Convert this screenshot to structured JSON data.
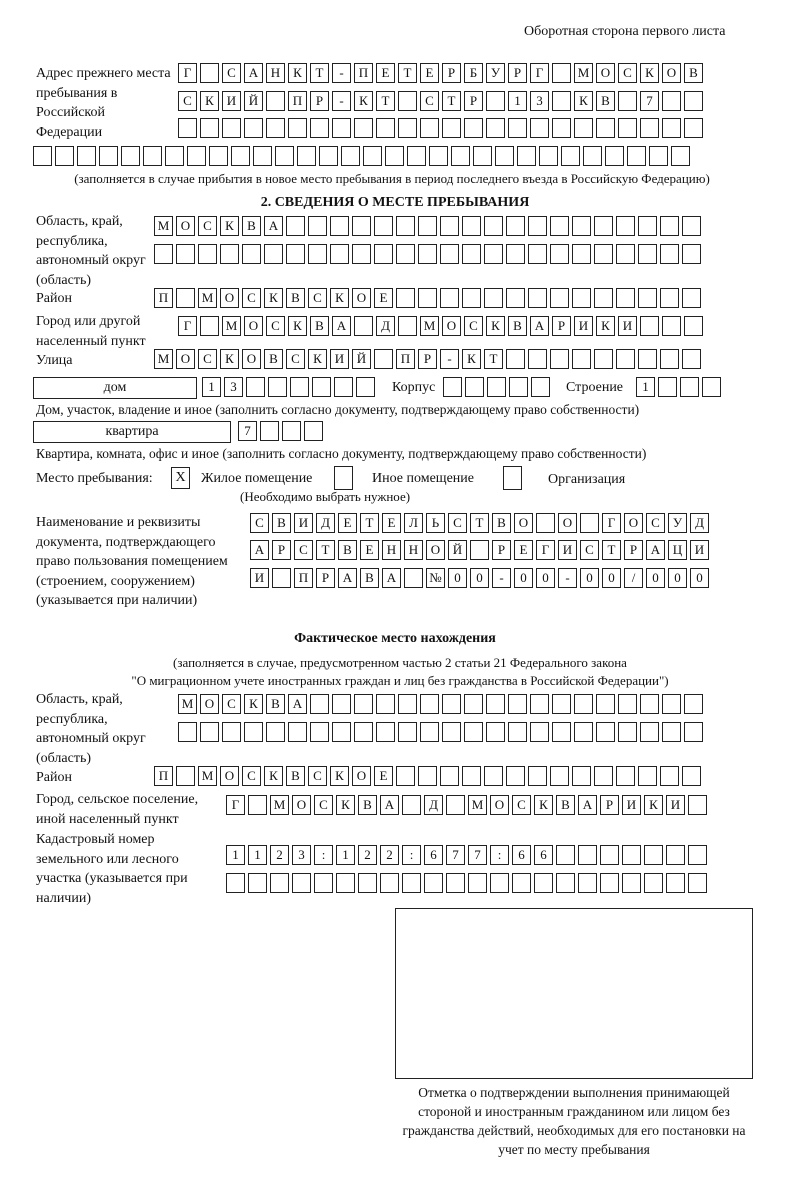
{
  "header": {
    "page_side": "Оборотная сторона первого листа"
  },
  "previous_address": {
    "label": "Адрес прежнего места пребывания в Российской Федерации",
    "rows": [
      [
        "Г",
        "",
        "С",
        "А",
        "Н",
        "К",
        "Т",
        "-",
        "П",
        "Е",
        "Т",
        "Е",
        "Р",
        "Б",
        "У",
        "Р",
        "Г",
        "",
        "М",
        "О",
        "С",
        "К",
        "О",
        "В"
      ],
      [
        "С",
        "К",
        "И",
        "Й",
        "",
        "П",
        "Р",
        "-",
        "К",
        "Т",
        "",
        "С",
        "Т",
        "Р",
        "",
        "1",
        "3",
        "",
        "К",
        "В",
        "",
        "7",
        "",
        ""
      ],
      [
        "",
        "",
        "",
        "",
        "",
        "",
        "",
        "",
        "",
        "",
        "",
        "",
        "",
        "",
        "",
        "",
        "",
        "",
        "",
        "",
        "",
        "",
        "",
        ""
      ],
      [
        "",
        "",
        "",
        "",
        "",
        "",
        "",
        "",
        "",
        "",
        "",
        "",
        "",
        "",
        "",
        "",
        "",
        "",
        "",
        "",
        "",
        "",
        "",
        "",
        "",
        "",
        "",
        "",
        "",
        ""
      ]
    ],
    "note": "(заполняется в случае прибытия в новое место пребывания в период последнего въезда в Российскую Федерацию)"
  },
  "section2": {
    "title": "2. СВЕДЕНИЯ О МЕСТЕ ПРЕБЫВАНИЯ",
    "region_label": "Область, край, республика, автономный округ (область)",
    "region_rows": [
      [
        "М",
        "О",
        "С",
        "К",
        "В",
        "А",
        "",
        "",
        "",
        "",
        "",
        "",
        "",
        "",
        "",
        "",
        "",
        "",
        "",
        "",
        "",
        "",
        "",
        "",
        ""
      ],
      [
        "",
        "",
        "",
        "",
        "",
        "",
        "",
        "",
        "",
        "",
        "",
        "",
        "",
        "",
        "",
        "",
        "",
        "",
        "",
        "",
        "",
        "",
        "",
        "",
        ""
      ]
    ],
    "district_label": "Район",
    "district": [
      "П",
      "",
      "М",
      "О",
      "С",
      "К",
      "В",
      "С",
      "К",
      "О",
      "Е",
      "",
      "",
      "",
      "",
      "",
      "",
      "",
      "",
      "",
      "",
      "",
      "",
      "",
      ""
    ],
    "city_label": "Город или другой населенный пункт",
    "city": [
      "Г",
      "",
      "М",
      "О",
      "С",
      "К",
      "В",
      "А",
      "",
      "Д",
      "",
      "М",
      "О",
      "С",
      "К",
      "В",
      "А",
      "Р",
      "И",
      "К",
      "И",
      "",
      "",
      ""
    ],
    "street_label": "Улица",
    "street": [
      "М",
      "О",
      "С",
      "К",
      "О",
      "В",
      "С",
      "К",
      "И",
      "Й",
      "",
      "П",
      "Р",
      "-",
      "К",
      "Т",
      "",
      "",
      "",
      "",
      "",
      "",
      "",
      "",
      ""
    ],
    "house_type": "дом",
    "house": [
      "1",
      "3",
      "",
      "",
      "",
      "",
      "",
      ""
    ],
    "korpus_label": "Корпус",
    "korpus": [
      "",
      "",
      "",
      "",
      ""
    ],
    "building_label": "Строение",
    "building": [
      "1",
      "",
      "",
      ""
    ],
    "house_note": "Дом, участок, владение и иное (заполнить согласно документу, подтверждающему право собственности)",
    "flat_type": "квартира",
    "flat": [
      "7",
      "",
      "",
      ""
    ],
    "flat_note": "Квартира, комната, офис и иное (заполнить согласно документу, подтверждающему право собственности)",
    "stay_place_label": "Место пребывания:",
    "options": [
      {
        "label": "Жилое помещение",
        "mark": "X"
      },
      {
        "label": "Иное помещение",
        "mark": ""
      },
      {
        "label": "Организация",
        "mark": ""
      }
    ],
    "options_note": "(Необходимо выбрать нужное)",
    "doc_label": "Наименование и реквизиты документа, подтверждающего право пользования помещением (строением, сооружением) (указывается при наличии)",
    "doc_rows": [
      [
        "С",
        "В",
        "И",
        "Д",
        "Е",
        "Т",
        "Е",
        "Л",
        "Ь",
        "С",
        "Т",
        "В",
        "О",
        "",
        "О",
        "",
        "Г",
        "О",
        "С",
        "У",
        "Д"
      ],
      [
        "А",
        "Р",
        "С",
        "Т",
        "В",
        "Е",
        "Н",
        "Н",
        "О",
        "Й",
        "",
        "Р",
        "Е",
        "Г",
        "И",
        "С",
        "Т",
        "Р",
        "А",
        "Ц",
        "И"
      ],
      [
        "И",
        "",
        "П",
        "Р",
        "А",
        "В",
        "А",
        "",
        "№",
        "0",
        "0",
        "-",
        "0",
        "0",
        "-",
        "0",
        "0",
        "/",
        "0",
        "0",
        "0"
      ]
    ]
  },
  "actual": {
    "title": "Фактическое место нахождения",
    "note1": "(заполняется в случае, предусмотренном частью 2 статьи 21 Федерального закона",
    "note2": "\"О миграционном учете иностранных граждан и лиц без гражданства в Российской Федерации\")",
    "region_label": "Область, край, республика, автономный округ (область)",
    "region_rows": [
      [
        "М",
        "О",
        "С",
        "К",
        "В",
        "А",
        "",
        "",
        "",
        "",
        "",
        "",
        "",
        "",
        "",
        "",
        "",
        "",
        "",
        "",
        "",
        "",
        "",
        ""
      ],
      [
        "",
        "",
        "",
        "",
        "",
        "",
        "",
        "",
        "",
        "",
        "",
        "",
        "",
        "",
        "",
        "",
        "",
        "",
        "",
        "",
        "",
        "",
        "",
        ""
      ]
    ],
    "district_label": "Район",
    "district": [
      "П",
      "",
      "М",
      "О",
      "С",
      "К",
      "В",
      "С",
      "К",
      "О",
      "Е",
      "",
      "",
      "",
      "",
      "",
      "",
      "",
      "",
      "",
      "",
      "",
      "",
      "",
      ""
    ],
    "city_label": "Город, сельское поселение, иной населенный пункт",
    "city": [
      "Г",
      "",
      "М",
      "О",
      "С",
      "К",
      "В",
      "А",
      "",
      "Д",
      "",
      "М",
      "О",
      "С",
      "К",
      "В",
      "А",
      "Р",
      "И",
      "К",
      "И",
      ""
    ],
    "cadastral_label": "Кадастровый номер земельного или лесного участка (указывается при наличии)",
    "cadastral_rows": [
      [
        "1",
        "1",
        "2",
        "3",
        ":",
        "1",
        "2",
        "2",
        ":",
        "6",
        "7",
        "7",
        ":",
        "6",
        "6",
        "",
        "",
        "",
        "",
        "",
        "",
        ""
      ],
      [
        "",
        "",
        "",
        "",
        "",
        "",
        "",
        "",
        "",
        "",
        "",
        "",
        "",
        "",
        "",
        "",
        "",
        "",
        "",
        "",
        "",
        ""
      ]
    ]
  },
  "stamp": {
    "caption": "Отметка о подтверждении выполнения принимающей стороной и иностранным гражданином или лицом без гражданства действий, необходимых для его постановки на учет по месту пребывания"
  }
}
